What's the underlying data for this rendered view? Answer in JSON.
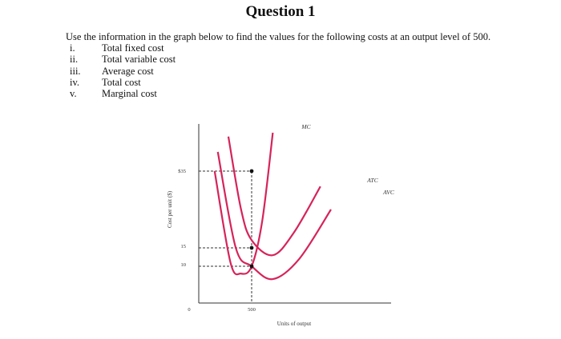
{
  "title": "Question 1",
  "intro": "Use the information in the graph below to find the values for the following costs at an output level of 500.",
  "questions": [
    {
      "num": "i.",
      "text": "Total fixed cost"
    },
    {
      "num": "ii.",
      "text": "Total variable cost"
    },
    {
      "num": "iii.",
      "text": "Average cost"
    },
    {
      "num": "iv.",
      "text": "Total cost"
    },
    {
      "num": "v.",
      "text": "Marginal cost"
    }
  ],
  "chart_data": {
    "type": "line",
    "xlabel": "Units of output",
    "ylabel": "Cost per unit ($)",
    "x_ticks": [
      "0",
      "500"
    ],
    "y_ticks": [
      "$35",
      "15",
      "10"
    ],
    "series": [
      {
        "name": "MC",
        "x": [
          150,
          300,
          400,
          500,
          600,
          700
        ],
        "y": [
          35,
          11,
          8,
          10,
          22,
          45
        ]
      },
      {
        "name": "ATC",
        "x": [
          280,
          400,
          500,
          700,
          900,
          1150
        ],
        "y": [
          44,
          25,
          17,
          13,
          19,
          31
        ]
      },
      {
        "name": "AVC",
        "x": [
          180,
          350,
          500,
          700,
          950,
          1250
        ],
        "y": [
          40,
          15,
          10,
          6.5,
          12,
          25
        ]
      }
    ],
    "guides": {
      "x": 500,
      "y": [
        35,
        15,
        10
      ]
    },
    "colors": {
      "curves": "#d6245a",
      "axes": "#333333"
    }
  }
}
